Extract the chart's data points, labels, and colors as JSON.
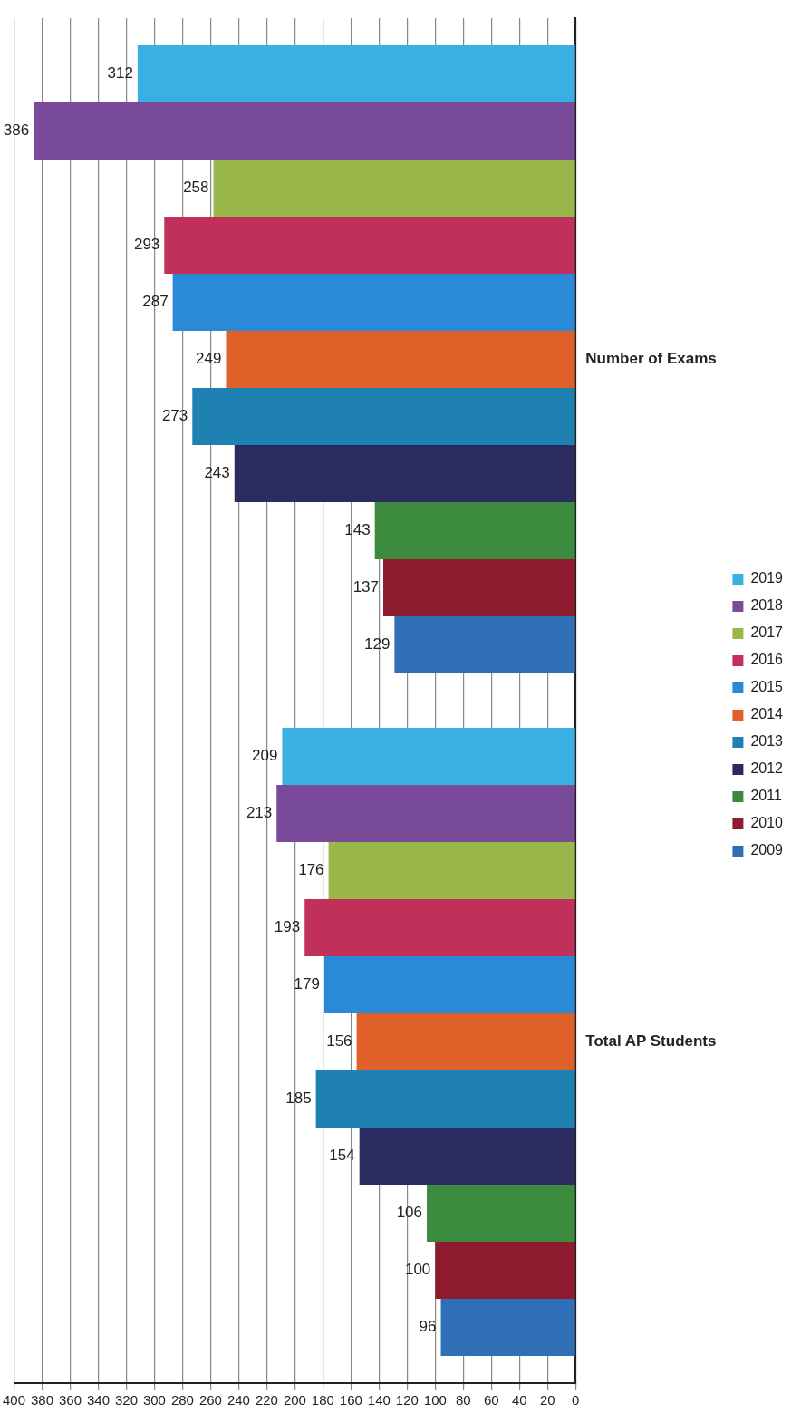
{
  "chart_data": {
    "type": "bar",
    "orientation": "horizontal",
    "categories": [
      "Number of Exams",
      "Total AP Students"
    ],
    "series": [
      {
        "name": "2019",
        "color": "#3ab0e2",
        "values": [
          312,
          209
        ]
      },
      {
        "name": "2018",
        "color": "#7a4a9a",
        "values": [
          386,
          213
        ]
      },
      {
        "name": "2017",
        "color": "#9ab84a",
        "values": [
          258,
          176
        ]
      },
      {
        "name": "2016",
        "color": "#c0305a",
        "values": [
          293,
          193
        ]
      },
      {
        "name": "2015",
        "color": "#2a8ad8",
        "values": [
          287,
          179
        ]
      },
      {
        "name": "2014",
        "color": "#e0602a",
        "values": [
          249,
          156
        ]
      },
      {
        "name": "2013",
        "color": "#1f80b2",
        "values": [
          273,
          185
        ]
      },
      {
        "name": "2012",
        "color": "#2b2b62",
        "values": [
          243,
          154
        ]
      },
      {
        "name": "2011",
        "color": "#3b8a3e",
        "values": [
          143,
          106
        ]
      },
      {
        "name": "2010",
        "color": "#8e1b2e",
        "values": [
          137,
          100
        ]
      },
      {
        "name": "2009",
        "color": "#2f6fb8",
        "values": [
          129,
          96
        ]
      }
    ],
    "xlim": [
      400,
      0
    ],
    "xticks": [
      400,
      380,
      360,
      340,
      320,
      300,
      280,
      260,
      240,
      220,
      200,
      180,
      160,
      140,
      120,
      100,
      80,
      60,
      40,
      20,
      0
    ],
    "grid": "x",
    "legend": "right",
    "data_labels": true
  }
}
